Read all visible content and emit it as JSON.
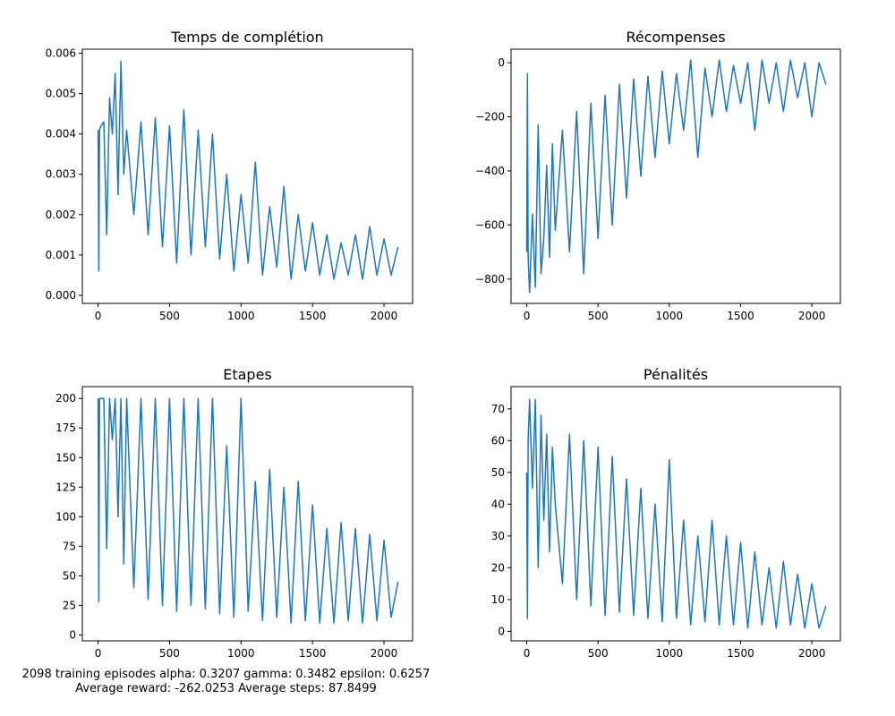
{
  "caption": {
    "line1": "2098 training episodes alpha: 0.3207 gamma: 0.3482 epsilon: 0.6257",
    "line2": "Average reward: -262.0253 Average steps: 87.8499"
  },
  "colors": {
    "series": "#1f77b4",
    "axes": "#000000",
    "background": "#ffffff"
  },
  "chart_data": [
    {
      "type": "line",
      "title": "Temps de complétion",
      "xlabel": "",
      "ylabel": "",
      "xlim": [
        -110,
        2200
      ],
      "ylim": [
        -0.0002,
        0.0061
      ],
      "xticks": [
        0,
        500,
        1000,
        1500,
        2000
      ],
      "xtick_labels": [
        "0",
        "500",
        "1000",
        "1500",
        "2000"
      ],
      "yticks": [
        0,
        0.001,
        0.002,
        0.003,
        0.004,
        0.005,
        0.006
      ],
      "ytick_labels": [
        "0.000",
        "0.001",
        "0.002",
        "0.003",
        "0.004",
        "0.005",
        "0.006"
      ],
      "grid": false,
      "series": [
        {
          "x": [
            0,
            5,
            10,
            20,
            40,
            60,
            80,
            100,
            120,
            140,
            160,
            180,
            200,
            250,
            300,
            350,
            400,
            450,
            500,
            550,
            600,
            650,
            700,
            750,
            800,
            850,
            900,
            950,
            1000,
            1050,
            1100,
            1150,
            1200,
            1250,
            1300,
            1350,
            1400,
            1450,
            1500,
            1550,
            1600,
            1650,
            1700,
            1750,
            1800,
            1850,
            1900,
            1950,
            2000,
            2050,
            2098
          ],
          "y": [
            0.0041,
            0.0006,
            0.0041,
            0.0042,
            0.0043,
            0.0015,
            0.0049,
            0.004,
            0.0055,
            0.0025,
            0.0058,
            0.003,
            0.0041,
            0.002,
            0.0043,
            0.0015,
            0.0044,
            0.0012,
            0.0042,
            0.0008,
            0.0046,
            0.001,
            0.0041,
            0.0012,
            0.004,
            0.0009,
            0.003,
            0.0006,
            0.0025,
            0.0008,
            0.0033,
            0.0005,
            0.0022,
            0.0007,
            0.0027,
            0.0004,
            0.002,
            0.0006,
            0.0018,
            0.0005,
            0.0015,
            0.0004,
            0.0013,
            0.0005,
            0.0015,
            0.0004,
            0.0017,
            0.0005,
            0.0014,
            0.0005,
            0.0012
          ]
        }
      ]
    },
    {
      "type": "line",
      "title": "Récompenses",
      "xlabel": "",
      "ylabel": "",
      "xlim": [
        -110,
        2200
      ],
      "ylim": [
        -890,
        50
      ],
      "xticks": [
        0,
        500,
        1000,
        1500,
        2000
      ],
      "xtick_labels": [
        "0",
        "500",
        "1000",
        "1500",
        "2000"
      ],
      "yticks": [
        -800,
        -600,
        -400,
        -200,
        0
      ],
      "ytick_labels": [
        "−800",
        "−600",
        "−400",
        "−200",
        "0"
      ],
      "grid": false,
      "series": [
        {
          "x": [
            0,
            5,
            10,
            20,
            40,
            60,
            80,
            100,
            120,
            140,
            160,
            180,
            200,
            250,
            300,
            350,
            400,
            450,
            500,
            550,
            600,
            650,
            700,
            750,
            800,
            850,
            900,
            950,
            1000,
            1050,
            1100,
            1150,
            1200,
            1250,
            1300,
            1350,
            1400,
            1450,
            1500,
            1550,
            1600,
            1650,
            1700,
            1750,
            1800,
            1850,
            1900,
            1950,
            2000,
            2050,
            2098
          ],
          "y": [
            -700,
            -40,
            -720,
            -850,
            -560,
            -830,
            -230,
            -780,
            -650,
            -380,
            -720,
            -300,
            -620,
            -250,
            -700,
            -180,
            -780,
            -150,
            -650,
            -120,
            -600,
            -80,
            -500,
            -60,
            -420,
            -50,
            -350,
            -30,
            -300,
            -40,
            -250,
            10,
            -350,
            -20,
            -200,
            10,
            -180,
            -10,
            -150,
            0,
            -250,
            10,
            -150,
            0,
            -180,
            10,
            -130,
            0,
            -200,
            0,
            -80
          ]
        }
      ]
    },
    {
      "type": "line",
      "title": "Etapes",
      "xlabel": "",
      "ylabel": "",
      "xlim": [
        -110,
        2200
      ],
      "ylim": [
        -5,
        210
      ],
      "xticks": [
        0,
        500,
        1000,
        1500,
        2000
      ],
      "xtick_labels": [
        "0",
        "500",
        "1000",
        "1500",
        "2000"
      ],
      "yticks": [
        0,
        25,
        50,
        75,
        100,
        125,
        150,
        175,
        200
      ],
      "ytick_labels": [
        "0",
        "25",
        "50",
        "75",
        "100",
        "125",
        "150",
        "175",
        "200"
      ],
      "grid": false,
      "series": [
        {
          "x": [
            0,
            5,
            10,
            20,
            40,
            60,
            80,
            100,
            120,
            140,
            160,
            180,
            200,
            250,
            300,
            350,
            400,
            450,
            500,
            550,
            600,
            650,
            700,
            750,
            800,
            850,
            900,
            950,
            1000,
            1050,
            1100,
            1150,
            1200,
            1250,
            1300,
            1350,
            1400,
            1450,
            1500,
            1550,
            1600,
            1650,
            1700,
            1750,
            1800,
            1850,
            1900,
            1950,
            2000,
            2050,
            2098
          ],
          "y": [
            200,
            28,
            200,
            200,
            200,
            73,
            200,
            165,
            200,
            100,
            200,
            60,
            200,
            40,
            200,
            30,
            200,
            25,
            200,
            20,
            200,
            25,
            200,
            22,
            200,
            18,
            160,
            15,
            200,
            20,
            130,
            12,
            140,
            15,
            125,
            10,
            130,
            12,
            110,
            10,
            90,
            10,
            95,
            12,
            90,
            10,
            85,
            12,
            80,
            15,
            45
          ]
        }
      ]
    },
    {
      "type": "line",
      "title": "Pénalités",
      "xlabel": "",
      "ylabel": "",
      "xlim": [
        -110,
        2200
      ],
      "ylim": [
        -3,
        77
      ],
      "xticks": [
        0,
        500,
        1000,
        1500,
        2000
      ],
      "xtick_labels": [
        "0",
        "500",
        "1000",
        "1500",
        "2000"
      ],
      "yticks": [
        0,
        10,
        20,
        30,
        40,
        50,
        60,
        70
      ],
      "ytick_labels": [
        "0",
        "10",
        "20",
        "30",
        "40",
        "50",
        "60",
        "70"
      ],
      "grid": false,
      "series": [
        {
          "x": [
            0,
            5,
            10,
            20,
            40,
            60,
            80,
            100,
            120,
            140,
            160,
            180,
            200,
            250,
            300,
            350,
            400,
            450,
            500,
            550,
            600,
            650,
            700,
            750,
            800,
            850,
            900,
            950,
            1000,
            1050,
            1100,
            1150,
            1200,
            1250,
            1300,
            1350,
            1400,
            1450,
            1500,
            1550,
            1600,
            1650,
            1700,
            1750,
            1800,
            1850,
            1900,
            1950,
            2000,
            2050,
            2098
          ],
          "y": [
            50,
            4,
            60,
            73,
            45,
            73,
            20,
            68,
            35,
            62,
            25,
            58,
            40,
            15,
            62,
            10,
            60,
            8,
            58,
            5,
            55,
            6,
            48,
            5,
            45,
            4,
            40,
            3,
            54,
            4,
            35,
            2,
            30,
            3,
            35,
            2,
            30,
            2,
            28,
            1,
            25,
            2,
            20,
            1,
            22,
            2,
            18,
            1,
            15,
            1,
            8
          ]
        }
      ]
    }
  ]
}
